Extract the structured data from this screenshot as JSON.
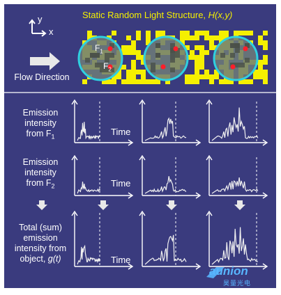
{
  "background_color": "#3a3b7e",
  "accent_yellow": "#f5f000",
  "axes": {
    "y": "y",
    "x": "x"
  },
  "flow_direction_label": "Flow Direction",
  "title": {
    "prefix": "Static Random Light Structure, ",
    "function": "H(x,y)"
  },
  "filter_labels": {
    "f1": "F",
    "f1_sub": "1",
    "f2": "F",
    "f2_sub": "2"
  },
  "rows": [
    {
      "label_lines": [
        "Emission",
        "intensity",
        "from F"
      ],
      "label_sub": "1"
    },
    {
      "label_lines": [
        "Emission",
        "intensity",
        "from F"
      ],
      "label_sub": "2"
    },
    {
      "label_lines": [
        "Total (sum)",
        "emission",
        "intensity from",
        "object, "
      ],
      "label_func": "g(t)"
    }
  ],
  "time_label": "Time",
  "watermark": {
    "brand": "aunion",
    "sub": "昊量光电"
  },
  "icons": {
    "flow": "right-arrow-icon",
    "down": "down-arrow-icon",
    "cells": "cell-circle-icon"
  }
}
